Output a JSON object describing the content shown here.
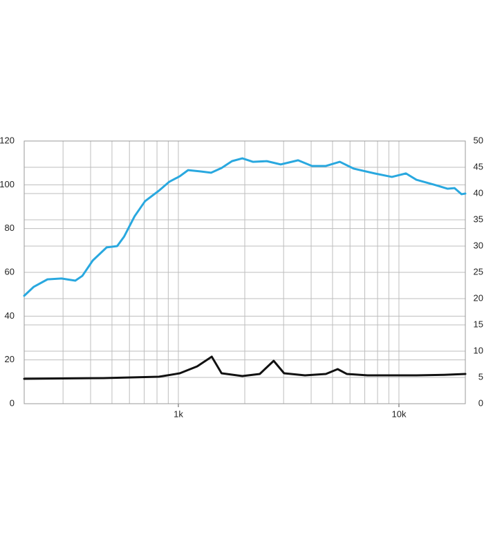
{
  "chart_data": {
    "type": "line",
    "xscale": "log",
    "xlim": [
      200,
      20000
    ],
    "xticks": [
      {
        "value": 1000,
        "label": "1k"
      },
      {
        "value": 10000,
        "label": "10k"
      }
    ],
    "xgrid": [
      200,
      300,
      400,
      500,
      600,
      700,
      800,
      900,
      1000,
      2000,
      3000,
      4000,
      5000,
      6000,
      7000,
      8000,
      9000,
      10000,
      20000
    ],
    "ylim": [
      0,
      120
    ],
    "yticks": [
      0,
      20,
      40,
      60,
      80,
      100,
      120
    ],
    "y2lim": [
      0,
      50
    ],
    "y2ticks": [
      0,
      5,
      10,
      15,
      20,
      25,
      30,
      35,
      40,
      45,
      50
    ],
    "grid": true,
    "series": [
      {
        "color": "#29a8df",
        "axis": "y",
        "x": [
          200,
          221,
          255,
          295,
          341,
          367,
          409,
          473,
          528,
          568,
          633,
          706,
          816,
          910,
          1015,
          1107,
          1262,
          1407,
          1570,
          1750,
          1950,
          2177,
          2517,
          2910,
          3490,
          4035,
          4665,
          5393,
          6235,
          7760,
          9290,
          10760,
          12000,
          14390,
          16630,
          17870,
          19230,
          20000
        ],
        "values": [
          49.3,
          53.4,
          56.8,
          57.2,
          56.2,
          58.4,
          65.4,
          71.4,
          72,
          76.4,
          85.6,
          92.5,
          97.3,
          101.4,
          103.9,
          106.7,
          106.1,
          105.5,
          107.7,
          110.8,
          112.1,
          110.5,
          110.8,
          109.3,
          111.2,
          108.6,
          108.6,
          110.5,
          107.4,
          105.2,
          103.6,
          105.2,
          102.3,
          100.1,
          98.2,
          98.5,
          95.7,
          96
        ]
      },
      {
        "color": "#111111",
        "axis": "y2",
        "x": [
          200,
          456,
          816,
          1015,
          1217,
          1417,
          1570,
          1950,
          2339,
          2705,
          3015,
          3750,
          4665,
          5275,
          5800,
          7210,
          12000,
          16030,
          20000
        ],
        "values": [
          4.74,
          4.87,
          5.13,
          5.79,
          7.1,
          8.95,
          5.79,
          5.26,
          5.66,
          8.16,
          5.79,
          5.39,
          5.66,
          6.58,
          5.66,
          5.39,
          5.39,
          5.5,
          5.66
        ]
      }
    ]
  }
}
